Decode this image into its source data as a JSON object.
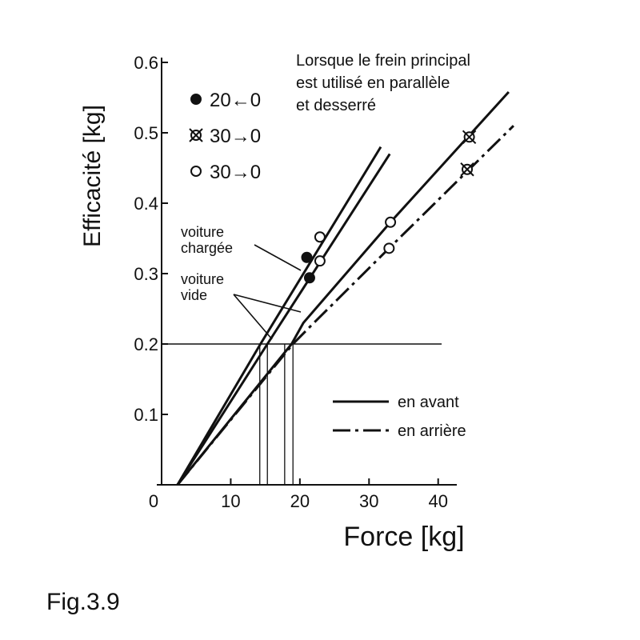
{
  "chart_data": {
    "type": "line",
    "xlabel": "Force [kg]",
    "ylabel": "Efficacité [kg]",
    "caption": "Fig.3.9",
    "note": [
      "Lorsque le frein principal",
      "est utilisé en parallèle",
      "et desserré"
    ],
    "annotations": [
      [
        "voiture",
        "chargée"
      ],
      [
        "voiture",
        "vide"
      ]
    ],
    "xlim": [
      0,
      42
    ],
    "ylim": [
      0,
      0.6
    ],
    "xticks": [
      0,
      10,
      20,
      30,
      40
    ],
    "yticks": [
      0.1,
      0.2,
      0.3,
      0.4,
      0.5,
      0.6
    ],
    "series": [
      {
        "dash": "solid",
        "x": [
          2.3,
          14.3,
          31.7
        ],
        "values": [
          0,
          0.2,
          0.48
        ]
      },
      {
        "dash": "solid",
        "x": [
          2.3,
          15.3,
          33
        ],
        "values": [
          0,
          0.2,
          0.47
        ]
      },
      {
        "dash": "solid",
        "x": [
          2.3,
          18.8,
          20.5,
          33.1,
          50.2
        ],
        "values": [
          0,
          0.2,
          0.23,
          0.373,
          0.558
        ]
      },
      {
        "dash": "dashdot",
        "x": [
          2.3,
          19,
          21,
          32.9,
          50.9
        ],
        "values": [
          0,
          0.2,
          0.22,
          0.336,
          0.51
        ]
      }
    ],
    "markers": [
      {
        "x": 22.9,
        "y": 0.352,
        "style": "open"
      },
      {
        "x": 22.9,
        "y": 0.318,
        "style": "open"
      },
      {
        "x": 21.0,
        "y": 0.323,
        "style": "filled"
      },
      {
        "x": 21.4,
        "y": 0.294,
        "style": "filled"
      },
      {
        "x": 33.1,
        "y": 0.373,
        "style": "open"
      },
      {
        "x": 32.9,
        "y": 0.336,
        "style": "open"
      },
      {
        "x": 44.5,
        "y": 0.494,
        "style": "crossed"
      },
      {
        "x": 44.2,
        "y": 0.448,
        "style": "crossed"
      }
    ],
    "marker_legend": [
      {
        "label": "20←0",
        "style": "filled"
      },
      {
        "label": "30→0",
        "style": "crossed"
      },
      {
        "label": "30→0",
        "style": "open"
      }
    ],
    "line_legend": [
      {
        "label": "en avant",
        "dash": "solid"
      },
      {
        "label": "en arrière",
        "dash": "dashdot"
      }
    ],
    "reference_y": 0.2,
    "reference_xmax": 40.5,
    "reference_x": [
      14.2,
      15.3,
      17.8,
      19.0
    ]
  }
}
